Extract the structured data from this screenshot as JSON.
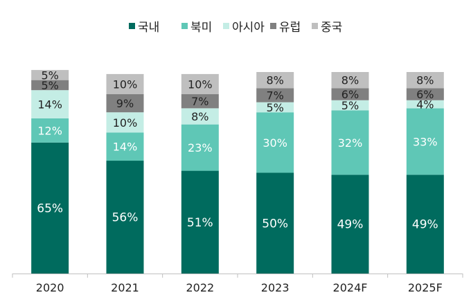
{
  "chart_data": {
    "type": "bar",
    "stacked": true,
    "percent": true,
    "categories": [
      "2020",
      "2021",
      "2022",
      "2023",
      "2024F",
      "2025F"
    ],
    "series": [
      {
        "name": "국내",
        "color": "#006B5E",
        "values": [
          65,
          56,
          51,
          50,
          49,
          49
        ],
        "labels": [
          "65%",
          "56%",
          "51%",
          "50%",
          "49%",
          "49%"
        ]
      },
      {
        "name": "북미",
        "color": "#5FC7B6",
        "values": [
          12,
          14,
          23,
          30,
          32,
          33
        ],
        "labels": [
          "12%",
          "14%",
          "23%",
          "30%",
          "32%",
          "33%"
        ]
      },
      {
        "name": "아시아",
        "color": "#C4EDE5",
        "values": [
          14,
          10,
          8,
          5,
          5,
          4
        ],
        "labels": [
          "14%",
          "10%",
          "8%",
          "5%",
          "5%",
          "4%"
        ]
      },
      {
        "name": "유럽",
        "color": "#808080",
        "values": [
          5,
          9,
          7,
          7,
          6,
          6
        ],
        "labels": [
          "5%",
          "9%",
          "7%",
          "7%",
          "6%",
          "6%"
        ]
      },
      {
        "name": "중국",
        "color": "#BFBFBF",
        "values": [
          5,
          10,
          10,
          8,
          8,
          8
        ],
        "labels": [
          "5%",
          "10%",
          "10%",
          "8%",
          "8%",
          "8%"
        ]
      }
    ],
    "ylim": [
      0,
      100
    ],
    "grid": false,
    "legend_position": "top-center",
    "label_colors": {
      "dark": "#ffffff",
      "light": "#222222"
    },
    "axis_color": "#BFBFBF"
  }
}
